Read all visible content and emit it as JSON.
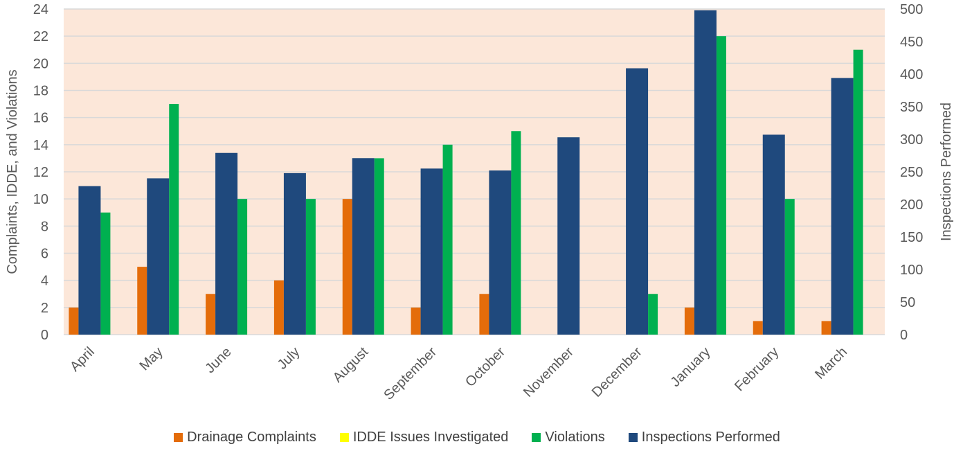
{
  "chart_data": {
    "type": "bar",
    "categories": [
      "April",
      "May",
      "June",
      "July",
      "August",
      "September",
      "October",
      "November",
      "December",
      "January",
      "February",
      "March"
    ],
    "series": [
      {
        "name": "Drainage Complaints",
        "axis": "left",
        "color": "#E46C0A",
        "values": [
          2,
          5,
          3,
          4,
          10,
          2,
          3,
          0,
          0,
          2,
          1,
          1
        ]
      },
      {
        "name": "IDDE Issues Investigated",
        "axis": "left",
        "color": "#FFFF00",
        "values": [
          0,
          0,
          0,
          0,
          0,
          0,
          0,
          0,
          0,
          0,
          0,
          0
        ]
      },
      {
        "name": "Violations",
        "axis": "left",
        "color": "#00B050",
        "values": [
          9,
          17,
          10,
          10,
          13,
          14,
          15,
          0,
          3,
          22,
          10,
          21
        ]
      },
      {
        "name": "Inspections Performed",
        "axis": "right",
        "color": "#1F497D",
        "values": [
          228,
          240,
          279,
          248,
          271,
          255,
          252,
          303,
          409,
          498,
          307,
          394
        ]
      }
    ],
    "ylabel": "Complaints, IDDE, and Violations",
    "y2label": "Inspections Performed",
    "ylim": [
      0,
      24
    ],
    "yticks": [
      0,
      2,
      4,
      6,
      8,
      10,
      12,
      14,
      16,
      18,
      20,
      22,
      24
    ],
    "y2lim": [
      0,
      500
    ],
    "y2ticks": [
      0,
      50,
      100,
      150,
      200,
      250,
      300,
      350,
      400,
      450,
      500
    ],
    "grid": true,
    "legend_position": "bottom",
    "plot_background": "#FCE7D9"
  }
}
